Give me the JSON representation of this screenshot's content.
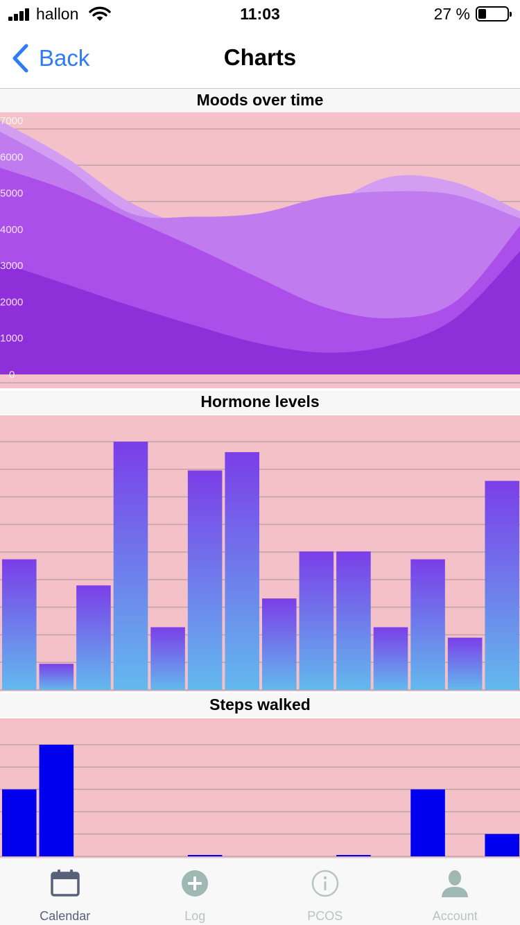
{
  "status_bar": {
    "carrier": "hallon",
    "time": "11:03",
    "battery_percent": "27 %",
    "battery_level": 0.27
  },
  "nav": {
    "back_label": "Back",
    "title": "Charts"
  },
  "colors": {
    "accent": "#2f7bf5",
    "chart_background": "#f4c1c9",
    "area_dark": "#8e2fd9",
    "area_mid": "#ab4eea",
    "area_light": "#c07cef",
    "area_lightest": "#d39ef2",
    "bar_top": "#7b3ee8",
    "bar_bottom": "#63b9ee",
    "steps_bar": "#0000ee",
    "tab_active": "#58607a",
    "tab_inactive": "#b7c5c2"
  },
  "chart_data": [
    {
      "type": "area",
      "title": "Moods over time",
      "ylim": [
        0,
        7000
      ],
      "yticks": [
        "0",
        "1000",
        "2000",
        "3000",
        "4000",
        "5000",
        "6000",
        "7000"
      ],
      "grid": true,
      "x": [
        0,
        1,
        2,
        3,
        4,
        5,
        6,
        7,
        8
      ],
      "series": [
        {
          "values": [
            3100,
            2500,
            1900,
            1350,
            850,
            600,
            800,
            1550,
            3400
          ],
          "color": "#8e2fd9"
        },
        {
          "values": [
            5700,
            5100,
            4300,
            3500,
            2650,
            1850,
            1550,
            2000,
            4100
          ],
          "color": "#ab4eea"
        },
        {
          "values": [
            6700,
            5700,
            4450,
            4350,
            4450,
            4900,
            5050,
            4950,
            4300
          ],
          "color": "#c07cef"
        },
        {
          "values": [
            7000,
            6000,
            4750,
            4050,
            4000,
            4650,
            5450,
            5300,
            4500
          ],
          "color": "#d39ef2"
        }
      ]
    },
    {
      "type": "bar",
      "title": "Hormone levels",
      "ylim": [
        0,
        9.5
      ],
      "grid": true,
      "values": [
        5,
        1,
        4,
        9.5,
        2.4,
        8.4,
        9.1,
        3.5,
        5.3,
        5.3,
        2.4,
        5,
        2,
        8
      ]
    },
    {
      "type": "bar",
      "title": "Steps walked",
      "ylim": [
        0,
        5
      ],
      "grid": true,
      "values": [
        3,
        5,
        0,
        0,
        0,
        0.03,
        0,
        0,
        0,
        0.03,
        0,
        3,
        0,
        1
      ]
    }
  ],
  "tabs": [
    {
      "label": "Calendar",
      "icon": "calendar-icon",
      "active": true
    },
    {
      "label": "Log",
      "icon": "plus-circle-icon",
      "active": false
    },
    {
      "label": "PCOS",
      "icon": "info-circle-icon",
      "active": false
    },
    {
      "label": "Account",
      "icon": "person-icon",
      "active": false
    }
  ]
}
